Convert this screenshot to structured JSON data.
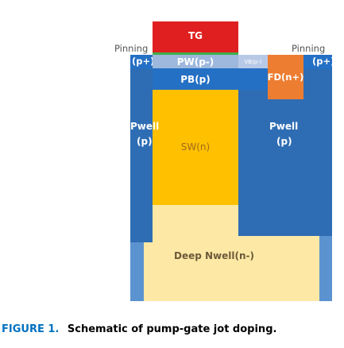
{
  "labels": {
    "tg": "TG",
    "pinning_left": "Pinning",
    "pinning_right": "Pinning",
    "p_plus_left": "(p+)",
    "p_plus_right": "(p+)",
    "pw": "PW(p-)",
    "vb": "VB(p-)",
    "pb": "PB(p)",
    "fd": "FD(n+)",
    "pwell_left_1": "Pwell",
    "pwell_left_2": "(p)",
    "pwell_right_1": "Pwell",
    "pwell_right_2": "(p)",
    "sw": "SW(n)",
    "deep_nwell": "Deep Nwell(n-)"
  },
  "caption": {
    "prefix": "FIGURE 1.",
    "text": "Schematic of pump-gate jot doping."
  },
  "colors": {
    "tg": "#e02020",
    "gate_oxide": "#3fae49",
    "pw": "#9db7dd",
    "vb": "#b7c9e6",
    "pb": "#2470c4",
    "pwell": "#2e6db4",
    "pwell_edge": "#5b93d0",
    "fd": "#ed7d31",
    "sw": "#ffc000",
    "deep_nwell": "#fde9a5",
    "caption_prefix": "#0070c0"
  }
}
